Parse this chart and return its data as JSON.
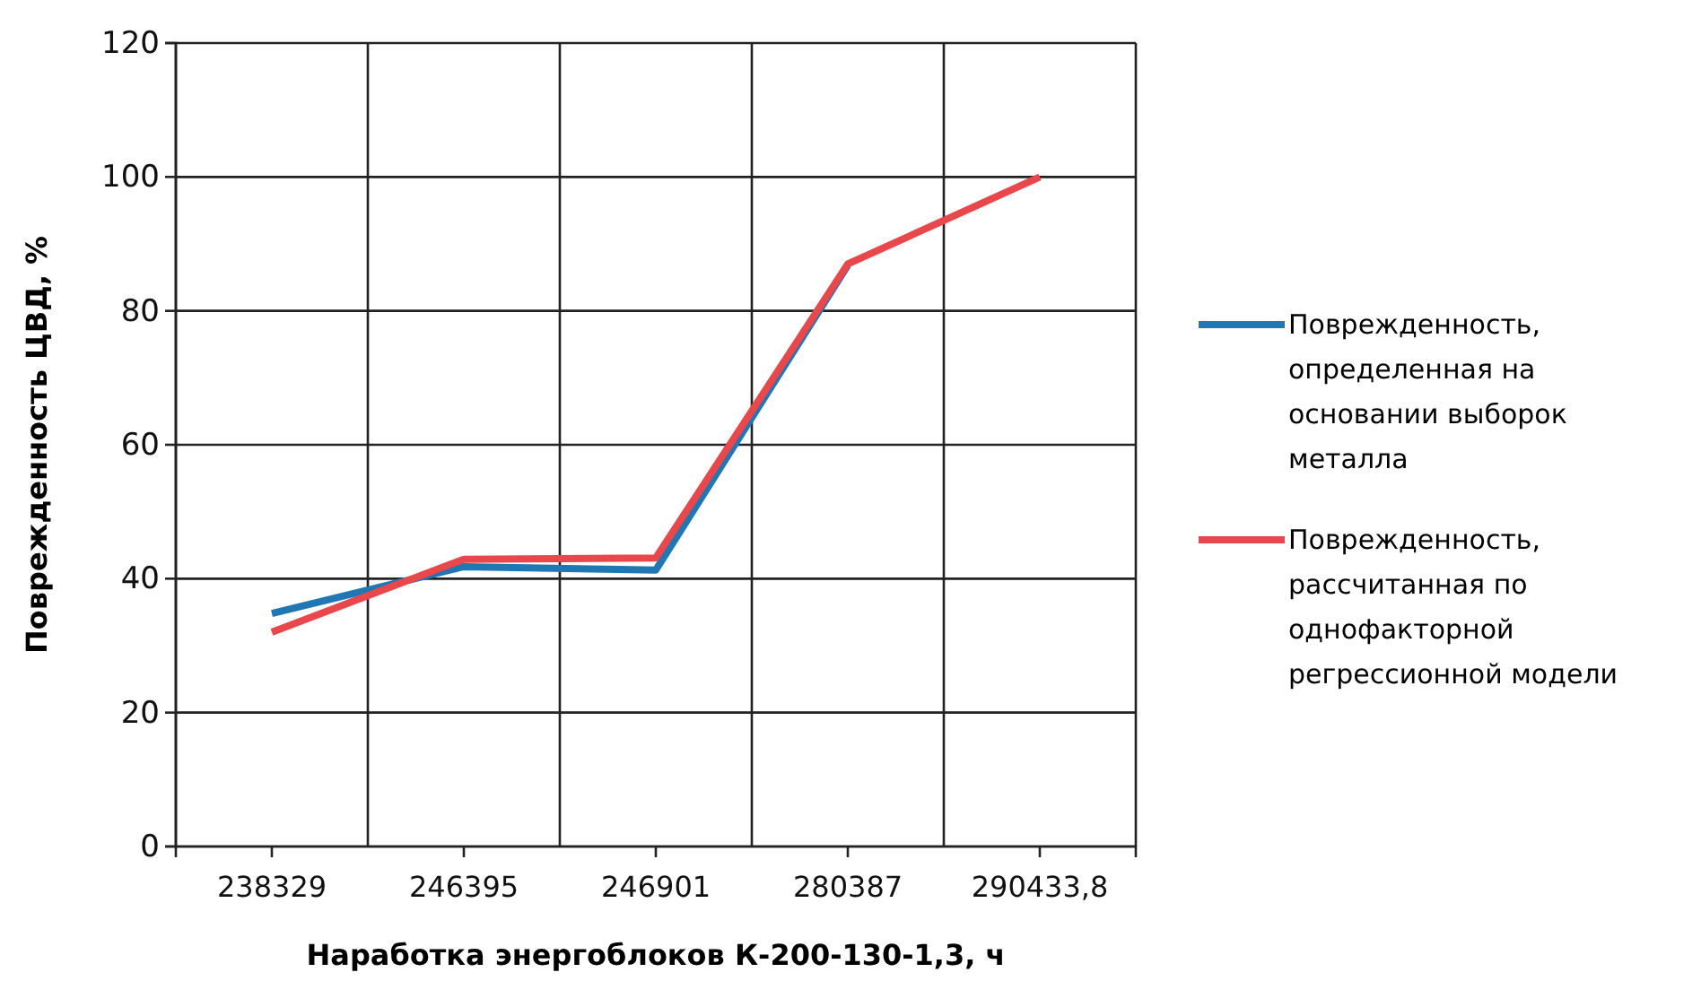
{
  "chart_data": {
    "type": "line",
    "xlabel": "Наработка энергоблоков К-200-130-1,3, ч",
    "ylabel": "Поврежденность ЦВД, %",
    "categories": [
      "238329",
      "246395",
      "246901",
      "280387",
      "290433,8"
    ],
    "series": [
      {
        "name": "Поврежденность, определенная на основании выборок металла",
        "color": "#1f77b4",
        "values": [
          34.8,
          41.8,
          41.3,
          86.8,
          null
        ]
      },
      {
        "name": "Поврежденность, рассчитанная по однофакторной регрессионной модели",
        "color": "#e8474b",
        "values": [
          32,
          42.9,
          43.1,
          87,
          100
        ]
      }
    ],
    "ylim": [
      0,
      120
    ],
    "yticks": [
      0,
      20,
      40,
      60,
      80,
      100,
      120
    ],
    "grid": true,
    "legend": "right",
    "marker": "none",
    "line_style": "solid"
  }
}
